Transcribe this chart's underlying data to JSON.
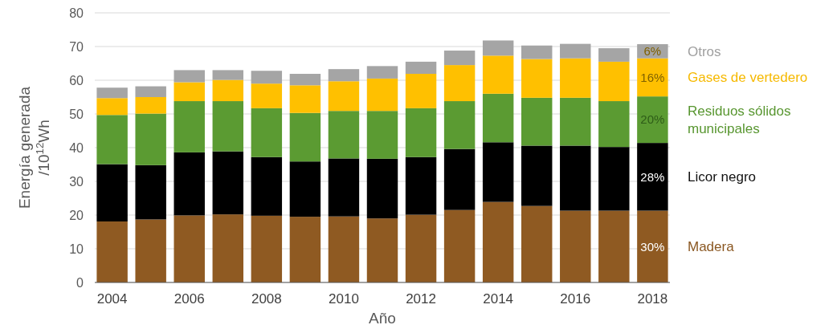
{
  "chart_data": {
    "type": "bar",
    "stacked": true,
    "xlabel": "Año",
    "ylabel": "Energía generada /10$^{12}$Wh",
    "categories": [
      "2004",
      null,
      "2006",
      null,
      "2008",
      null,
      "2010",
      null,
      "2012",
      null,
      "2014",
      null,
      "2016",
      null,
      "2018"
    ],
    "series": [
      {
        "name": "Madera",
        "color": "#8f5a22",
        "values": [
          18.1,
          18.7,
          19.9,
          20.2,
          19.8,
          19.5,
          19.6,
          19.0,
          20.1,
          21.5,
          23.9,
          22.7,
          21.3,
          21.3,
          21.3
        ]
      },
      {
        "name": "Licor negro",
        "color": "#000000",
        "values": [
          17.0,
          16.1,
          18.7,
          18.7,
          17.4,
          16.4,
          17.2,
          17.7,
          17.1,
          18.1,
          17.7,
          17.9,
          19.3,
          18.9,
          20.1
        ]
      },
      {
        "name": "Residuos sólidos municipales",
        "color": "#5b9b32",
        "values": [
          14.6,
          15.3,
          15.2,
          14.9,
          14.5,
          14.4,
          14.1,
          14.2,
          14.5,
          14.2,
          14.4,
          14.2,
          14.2,
          13.6,
          13.8
        ]
      },
      {
        "name": "Gases de vertedero",
        "color": "#ffc000",
        "values": [
          5.0,
          4.9,
          5.6,
          6.3,
          7.3,
          8.2,
          8.8,
          9.6,
          10.2,
          10.7,
          11.3,
          11.5,
          11.7,
          11.7,
          11.3
        ]
      },
      {
        "name": "Otros",
        "color": "#a5a5a5",
        "values": [
          3.1,
          3.2,
          3.6,
          2.9,
          3.8,
          3.4,
          3.6,
          3.7,
          3.6,
          4.3,
          4.5,
          4.0,
          4.3,
          4.0,
          4.2
        ]
      }
    ],
    "annotations": [
      "30%",
      "28%",
      "20%",
      "16%",
      "6%"
    ],
    "ylim": [
      0,
      80
    ],
    "yticks": [
      0,
      10,
      20,
      30,
      40,
      50,
      60,
      70,
      80
    ],
    "grid": "y"
  }
}
